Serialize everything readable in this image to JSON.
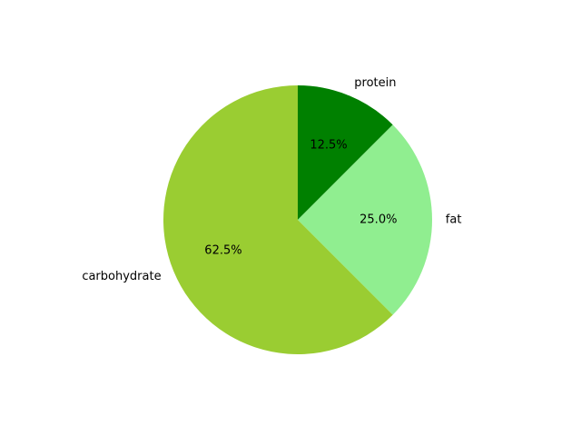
{
  "chart_data": {
    "type": "pie",
    "start_angle_deg": 90,
    "direction": "clockwise",
    "legend": "none",
    "slices": [
      {
        "label": "protein",
        "value": 12.5,
        "percent_label": "12.5%",
        "color": "#008000"
      },
      {
        "label": "fat",
        "value": 25.0,
        "percent_label": "25.0%",
        "color": "#90ee90"
      },
      {
        "label": "carbohydrate",
        "value": 62.5,
        "percent_label": "62.5%",
        "color": "#9acd32"
      }
    ]
  }
}
